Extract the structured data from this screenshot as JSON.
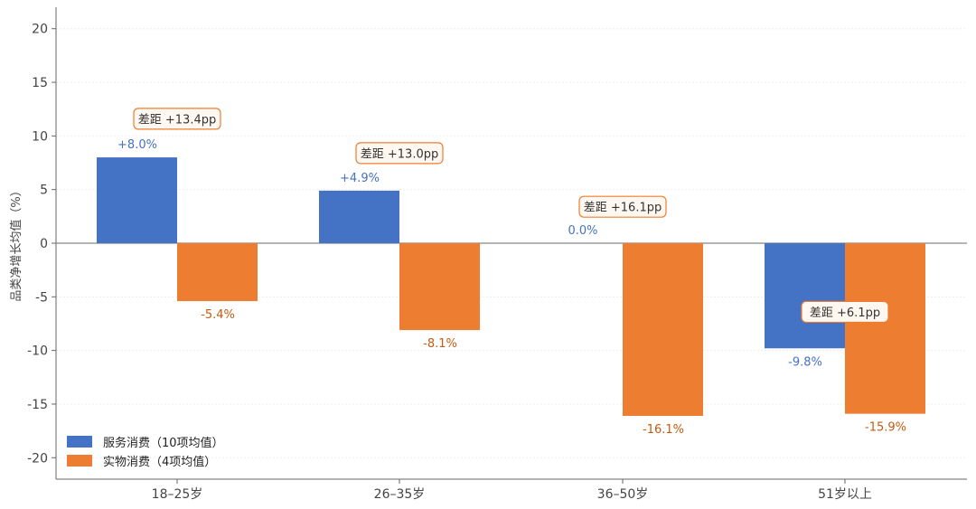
{
  "chart_data": {
    "type": "bar",
    "title": "",
    "xlabel": "",
    "ylabel": "品类净增长均值（%）",
    "ylim": [
      -22,
      22
    ],
    "yticks": [
      20,
      15,
      10,
      5,
      0,
      -5,
      -10,
      -15,
      -20
    ],
    "ytick_labels": [
      "20",
      "15",
      "10",
      "5",
      "0",
      "-5",
      "-10",
      "-15",
      "-20"
    ],
    "grid": true,
    "legend_position": "bottom-left",
    "categories": [
      "18–25岁",
      "26–35岁",
      "36–50岁",
      "51岁以上"
    ],
    "series": [
      {
        "name": "服务消费（10项均值）",
        "color": "#4472C4",
        "values": [
          8.0,
          4.9,
          0.0,
          -9.8
        ],
        "labels": [
          "+8.0%",
          "+4.9%",
          "0.0%",
          "-9.8%"
        ]
      },
      {
        "name": "实物消费（4项均值）",
        "color": "#ED7D31",
        "values": [
          -5.4,
          -8.1,
          -16.1,
          -15.9
        ],
        "labels": [
          "-5.4%",
          "-8.1%",
          "-16.1%",
          "-15.9%"
        ]
      }
    ],
    "annotations": [
      "差距 +13.4pp",
      "差距 +13.0pp",
      "差距 +16.1pp",
      "差距 +6.1pp"
    ],
    "annotation_colors": {
      "border": "#ED7D31",
      "fill": "#FFF8F0"
    },
    "label_colors": {
      "positive_series": "#4472C4",
      "negative_series": "#C55A11"
    }
  }
}
